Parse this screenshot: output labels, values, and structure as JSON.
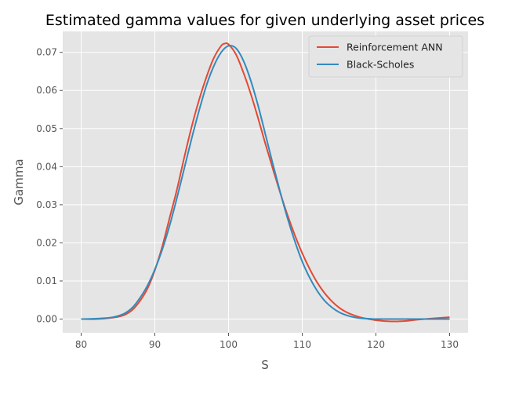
{
  "chart_data": {
    "type": "line",
    "title": "Estimated gamma values for given underlying asset prices",
    "xlabel": "S",
    "ylabel": "Gamma",
    "xlim": [
      77.5,
      132.5
    ],
    "ylim": [
      -0.0036,
      0.0755
    ],
    "xticks": [
      80,
      90,
      100,
      110,
      120,
      130
    ],
    "yticks": [
      0.0,
      0.01,
      0.02,
      0.03,
      0.04,
      0.05,
      0.06,
      0.07
    ],
    "ytick_labels": [
      "0.00",
      "0.01",
      "0.02",
      "0.03",
      "0.04",
      "0.05",
      "0.06",
      "0.07"
    ],
    "grid": true,
    "legend": "top-right",
    "series": [
      {
        "name": "Reinforcement ANN",
        "color": "#E24A33",
        "x": [
          80,
          82,
          84,
          85,
          86,
          87,
          88,
          89,
          90,
          91,
          92,
          93,
          94,
          95,
          96,
          97,
          98,
          99,
          99.5,
          100,
          101,
          102,
          103,
          104,
          105,
          106,
          107,
          108,
          109,
          110,
          111,
          112,
          113,
          114,
          115,
          116,
          117,
          118,
          119,
          120,
          121,
          122,
          123,
          124,
          125,
          126,
          128,
          130
        ],
        "y": [
          0.0,
          0.0,
          0.0003,
          0.0006,
          0.0012,
          0.0025,
          0.0048,
          0.008,
          0.0128,
          0.019,
          0.0265,
          0.034,
          0.0425,
          0.0505,
          0.0575,
          0.0635,
          0.0685,
          0.0717,
          0.0723,
          0.0721,
          0.0695,
          0.0648,
          0.0592,
          0.0528,
          0.046,
          0.0395,
          0.0332,
          0.0273,
          0.022,
          0.0173,
          0.0132,
          0.0097,
          0.0069,
          0.0047,
          0.003,
          0.0018,
          0.001,
          0.0004,
          0.0,
          -0.0003,
          -0.0005,
          -0.0006,
          -0.0006,
          -0.0005,
          -0.0003,
          -0.0001,
          0.0002,
          0.0005
        ]
      },
      {
        "name": "Black-Scholes",
        "color": "#348ABD",
        "x": [
          80,
          82,
          84,
          85,
          86,
          87,
          88,
          89,
          90,
          91,
          92,
          93,
          94,
          95,
          96,
          97,
          98,
          99,
          100,
          101,
          102,
          103,
          104,
          105,
          106,
          107,
          108,
          109,
          110,
          111,
          112,
          113,
          114,
          115,
          116,
          117,
          118,
          119,
          120,
          122,
          124,
          126,
          128,
          130
        ],
        "y": [
          0.0,
          0.0001,
          0.0004,
          0.0008,
          0.0016,
          0.0031,
          0.0056,
          0.0088,
          0.013,
          0.0182,
          0.0245,
          0.0318,
          0.0396,
          0.0474,
          0.0547,
          0.0613,
          0.0664,
          0.07,
          0.0717,
          0.0711,
          0.0679,
          0.0627,
          0.0561,
          0.0485,
          0.0408,
          0.0334,
          0.0265,
          0.0204,
          0.0151,
          0.0109,
          0.0075,
          0.0049,
          0.0031,
          0.0018,
          0.001,
          0.0005,
          0.0002,
          0.0001,
          0.0,
          0.0,
          0.0,
          0.0,
          0.0,
          0.0
        ]
      }
    ]
  }
}
